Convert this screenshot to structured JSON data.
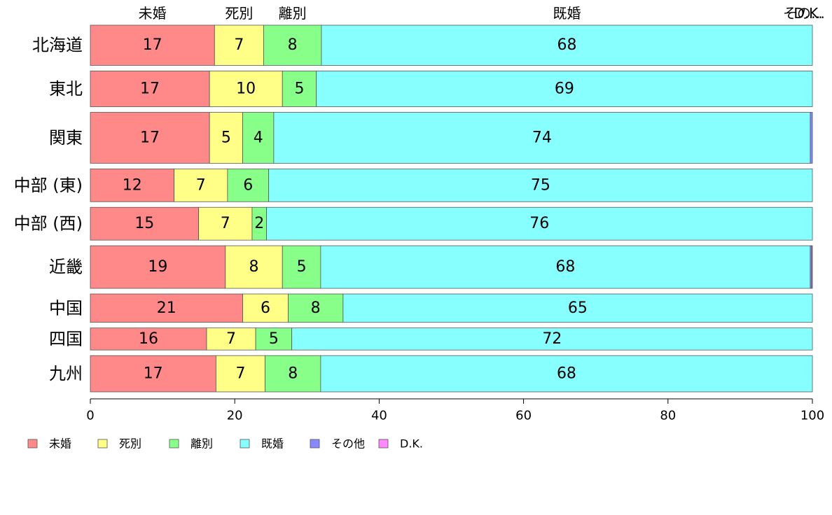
{
  "chart_data": {
    "type": "bar",
    "orientation": "horizontal",
    "stacked": true,
    "title": "",
    "xlabel": "",
    "ylabel": "",
    "xlim": [
      0,
      100
    ],
    "x_ticks": [
      0,
      20,
      40,
      60,
      80,
      100
    ],
    "grid": false,
    "legend_position": "bottom-left",
    "categories": [
      "北海道",
      "東北",
      "関東",
      "中部 (東)",
      "中部 (西)",
      "近畿",
      "中国",
      "四国",
      "九州"
    ],
    "series": [
      {
        "name": "未婚",
        "color": "#ff8888",
        "values": [
          17.2,
          16.5,
          16.5,
          11.6,
          15.0,
          18.7,
          21.1,
          16.1,
          17.4
        ]
      },
      {
        "name": "死別",
        "color": "#ffff88",
        "values": [
          6.8,
          10.1,
          4.6,
          7.4,
          7.4,
          7.9,
          6.3,
          6.8,
          6.8
        ]
      },
      {
        "name": "離別",
        "color": "#88ff88",
        "values": [
          8.0,
          4.7,
          4.3,
          5.7,
          2.0,
          5.3,
          7.6,
          5.0,
          7.7
        ]
      },
      {
        "name": "既婚",
        "color": "#88ffff",
        "values": [
          68.0,
          68.7,
          74.3,
          75.3,
          75.6,
          67.8,
          65.0,
          72.1,
          68.1
        ]
      },
      {
        "name": "その他",
        "color": "#8888ff",
        "values": [
          0.0,
          0.0,
          0.3,
          0.0,
          0.0,
          0.2,
          0.0,
          0.0,
          0.0
        ]
      },
      {
        "name": "D.K.",
        "color": "#ff88ff",
        "values": [
          0.0,
          0.0,
          0.0,
          0.0,
          0.0,
          0.1,
          0.0,
          0.0,
          0.0
        ]
      }
    ],
    "segment_labels": [
      [
        "17",
        "7",
        "8",
        "68",
        "",
        ""
      ],
      [
        "17",
        "10",
        "5",
        "69",
        "",
        ""
      ],
      [
        "17",
        "5",
        "4",
        "74",
        "",
        ""
      ],
      [
        "12",
        "7",
        "6",
        "75",
        "",
        ""
      ],
      [
        "15",
        "7",
        "2",
        "76",
        "",
        ""
      ],
      [
        "19",
        "8",
        "5",
        "68",
        "",
        ""
      ],
      [
        "21",
        "6",
        "8",
        "65",
        "",
        ""
      ],
      [
        "16",
        "7",
        "5",
        "72",
        "",
        ""
      ],
      [
        "17",
        "7",
        "8",
        "68",
        "",
        ""
      ]
    ],
    "top_labels": [
      "未婚",
      "死別",
      "離別",
      "既婚",
      "その…",
      "D.K."
    ],
    "row_weights": [
      82,
      73,
      104,
      67,
      67,
      87,
      58,
      45,
      74
    ]
  }
}
